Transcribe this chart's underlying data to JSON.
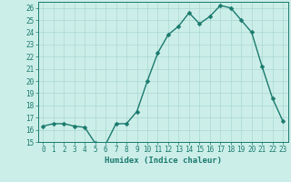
{
  "x": [
    0,
    1,
    2,
    3,
    4,
    5,
    6,
    7,
    8,
    9,
    10,
    11,
    12,
    13,
    14,
    15,
    16,
    17,
    18,
    19,
    20,
    21,
    22,
    23
  ],
  "y": [
    16.3,
    16.5,
    16.5,
    16.3,
    16.2,
    14.9,
    14.8,
    16.5,
    16.5,
    17.5,
    20.0,
    22.3,
    23.8,
    24.5,
    25.6,
    24.7,
    25.3,
    26.2,
    26.0,
    25.0,
    24.0,
    21.2,
    18.6,
    16.7
  ],
  "line_color": "#1a7a6e",
  "marker_color": "#1a7a6e",
  "bg_color": "#cceee8",
  "grid_color": "#aad8d2",
  "xlabel": "Humidex (Indice chaleur)",
  "ylim": [
    15,
    26.5
  ],
  "xlim": [
    -0.5,
    23.5
  ],
  "yticks": [
    15,
    16,
    17,
    18,
    19,
    20,
    21,
    22,
    23,
    24,
    25,
    26
  ],
  "xticks": [
    0,
    1,
    2,
    3,
    4,
    5,
    6,
    7,
    8,
    9,
    10,
    11,
    12,
    13,
    14,
    15,
    16,
    17,
    18,
    19,
    20,
    21,
    22,
    23
  ],
  "xtick_labels": [
    "0",
    "1",
    "2",
    "3",
    "4",
    "5",
    "6",
    "7",
    "8",
    "9",
    "10",
    "11",
    "12",
    "13",
    "14",
    "15",
    "16",
    "17",
    "18",
    "19",
    "20",
    "21",
    "22",
    "23"
  ],
  "ytick_labels": [
    "15",
    "16",
    "17",
    "18",
    "19",
    "20",
    "21",
    "22",
    "23",
    "24",
    "25",
    "26"
  ],
  "label_fontsize": 6.5,
  "tick_fontsize": 5.5,
  "linewidth": 1.0,
  "markersize": 2.5
}
